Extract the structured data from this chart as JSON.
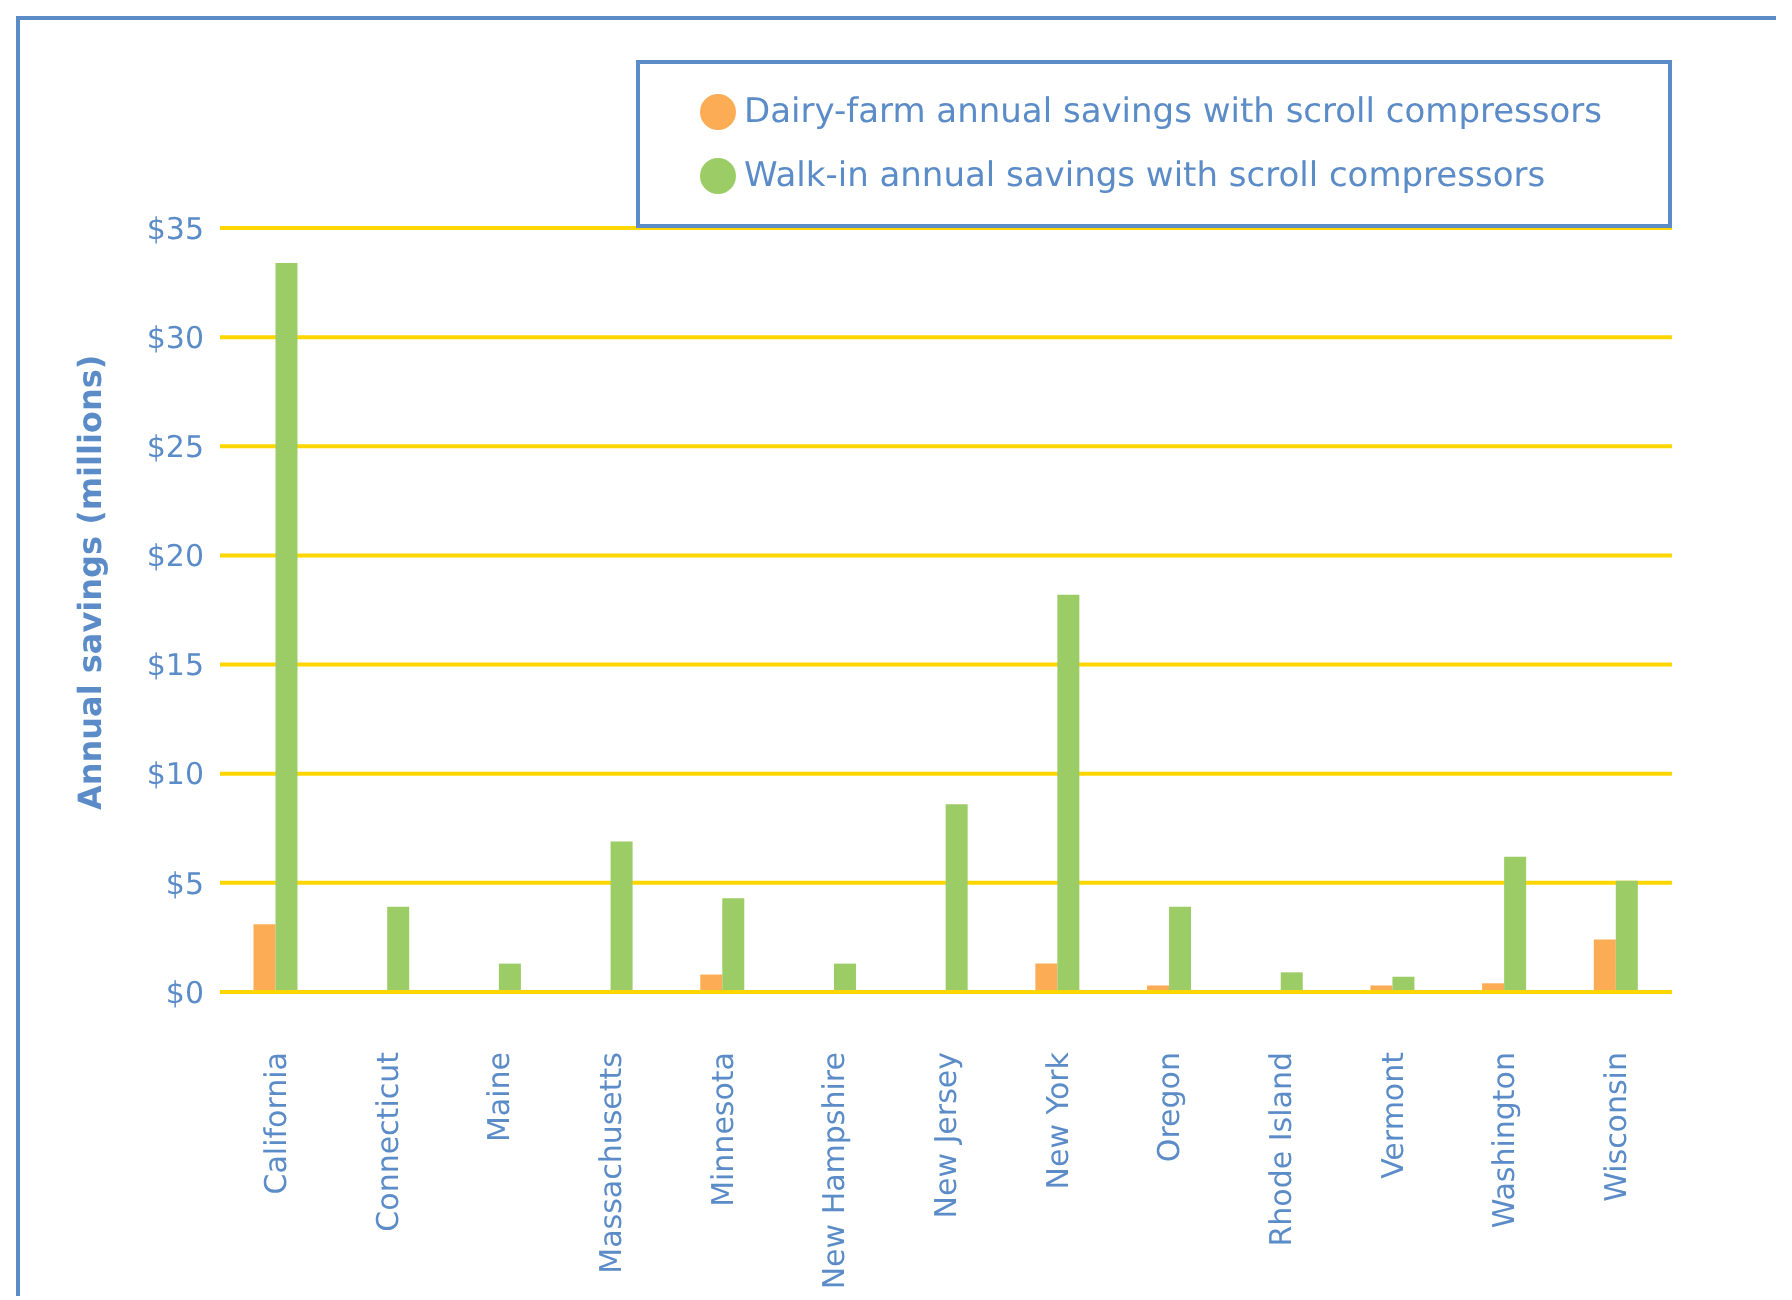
{
  "chart_data": {
    "type": "bar",
    "ylabel": "Annual savings (millions)",
    "categories": [
      "California",
      "Connecticut",
      "Maine",
      "Massachusetts",
      "Minnesota",
      "New Hampshire",
      "New Jersey",
      "New York",
      "Oregon",
      "Rhode Island",
      "Vermont",
      "Washington",
      "Wisconsin"
    ],
    "series": [
      {
        "name": "Dairy-farm annual savings with scroll compressors",
        "color": "#fbac55",
        "values": [
          3.1,
          0,
          0,
          0,
          0.8,
          0,
          0,
          1.3,
          0.3,
          0,
          0.3,
          0.4,
          2.4
        ]
      },
      {
        "name": "Walk-in annual savings with scroll compressors",
        "color": "#9ccc65",
        "values": [
          33.4,
          3.9,
          1.3,
          6.9,
          4.3,
          1.3,
          8.6,
          18.2,
          3.9,
          0.9,
          0.7,
          6.2,
          5.1
        ]
      }
    ],
    "ylim": [
      0,
      35
    ],
    "yticks": [
      {
        "value": 0,
        "label": "$0"
      },
      {
        "value": 5,
        "label": "$5"
      },
      {
        "value": 10,
        "label": "$10"
      },
      {
        "value": 15,
        "label": "$15"
      },
      {
        "value": 20,
        "label": "$20"
      },
      {
        "value": 25,
        "label": "$25"
      },
      {
        "value": 30,
        "label": "$30"
      },
      {
        "value": 35,
        "label": "$35"
      }
    ],
    "grid": "y",
    "legend": "top right"
  }
}
